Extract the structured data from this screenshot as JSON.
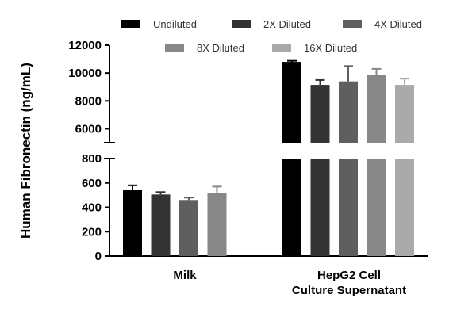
{
  "chart_data": {
    "type": "bar",
    "title": "",
    "xlabel": "",
    "ylabel": "Human Fibronectin (ng/mL)",
    "categories": [
      "Milk",
      "HepG2 Cell\nCulture Supernatant"
    ],
    "axis_break": {
      "lower": {
        "ylim": [
          0,
          800
        ],
        "ticks": [
          "0",
          "200",
          "400",
          "600",
          "800"
        ]
      },
      "upper": {
        "ylim": [
          5000,
          12000
        ],
        "ticks": [
          "6000",
          "8000",
          "10000",
          "12000"
        ]
      }
    },
    "legend_position": "top",
    "series": [
      {
        "name": "Undiluted",
        "color": "#000000",
        "values": [
          540,
          10800
        ],
        "errors": [
          40,
          80
        ]
      },
      {
        "name": "2X Diluted",
        "color": "#333333",
        "values": [
          505,
          9150
        ],
        "errors": [
          20,
          350
        ]
      },
      {
        "name": "4X Diluted",
        "color": "#5f5f5f",
        "values": [
          460,
          9400
        ],
        "errors": [
          20,
          1100
        ]
      },
      {
        "name": "8X Diluted",
        "color": "#878787",
        "values": [
          515,
          9850
        ],
        "errors": [
          55,
          450
        ]
      },
      {
        "name": "16X Diluted",
        "color": "#aaaaaa",
        "values": [
          null,
          9150
        ],
        "errors": [
          null,
          450
        ]
      }
    ]
  }
}
